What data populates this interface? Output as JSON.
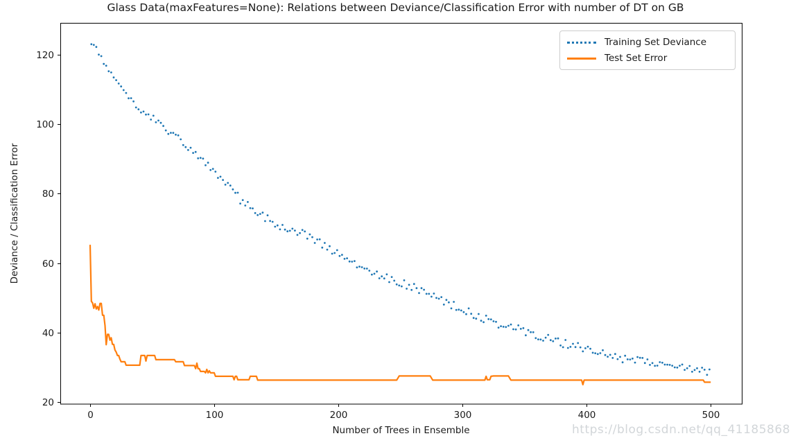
{
  "watermark": "https://blog.csdn.net/qq_41185868",
  "chart_data": {
    "type": "scatter+line",
    "title": "Glass Data(maxFeatures=None): Relations between Deviance/Classification Error with number of DT on GB",
    "xlabel": "Number of Trees in Ensemble",
    "ylabel": "Deviance / Classification Error",
    "xlim": [
      -24,
      525
    ],
    "ylim": [
      19.4,
      129.2
    ],
    "xticks": [
      0,
      100,
      200,
      300,
      400,
      500
    ],
    "yticks": [
      20,
      40,
      60,
      80,
      100,
      120
    ],
    "grid": false,
    "background": "#ffffff",
    "spine_color": "#000000",
    "legend": {
      "position": "upper right",
      "entries": [
        {
          "label": "Training Set Deviance",
          "color": "#1f77b4",
          "style": "dotted"
        },
        {
          "label": "Test Set Error",
          "color": "#ff7f0e",
          "style": "solid"
        }
      ]
    },
    "series": [
      {
        "name": "Training Set Deviance",
        "type": "scatter",
        "color": "#1f77b4",
        "marker_size": 2,
        "x_start": 1,
        "x_step": 2,
        "noise_amplitude": 1.2,
        "y": [
          124.0,
          122.8,
          121.5,
          120.3,
          119.0,
          117.8,
          116.5,
          115.3,
          114.0,
          113.2,
          112.3,
          111.5,
          110.7,
          109.9,
          109.0,
          108.2,
          107.4,
          106.6,
          105.7,
          104.9,
          104.2,
          103.7,
          103.2,
          102.6,
          102.1,
          101.6,
          101.0,
          100.5,
          99.9,
          99.4,
          98.9,
          98.3,
          97.8,
          97.3,
          96.7,
          96.1,
          95.4,
          94.8,
          94.2,
          93.5,
          92.9,
          92.3,
          91.6,
          91.0,
          90.4,
          89.7,
          89.1,
          88.5,
          87.7,
          86.9,
          86.1,
          85.4,
          84.6,
          83.8,
          83.0,
          82.2,
          81.4,
          80.6,
          79.9,
          79.1,
          78.3,
          77.5,
          77.0,
          76.6,
          76.1,
          75.6,
          75.2,
          74.7,
          74.3,
          73.8,
          73.3,
          72.9,
          72.4,
          71.9,
          71.5,
          71.0,
          70.8,
          70.5,
          70.3,
          70.0,
          69.8,
          69.5,
          69.3,
          69.0,
          68.8,
          68.5,
          68.3,
          68.0,
          67.6,
          67.1,
          66.7,
          66.2,
          65.8,
          65.4,
          64.9,
          64.5,
          64.0,
          63.6,
          63.2,
          62.7,
          62.3,
          62.0,
          61.6,
          61.3,
          61.0,
          60.6,
          60.3,
          59.9,
          59.6,
          59.3,
          58.9,
          58.6,
          58.2,
          57.9,
          57.5,
          57.2,
          56.8,
          56.5,
          56.2,
          55.9,
          55.6,
          55.4,
          55.1,
          54.8,
          54.5,
          54.2,
          53.9,
          53.6,
          53.4,
          53.1,
          52.8,
          52.5,
          52.2,
          51.9,
          51.6,
          51.3,
          51.0,
          50.7,
          50.3,
          50.0,
          49.7,
          49.3,
          49.0,
          48.7,
          48.3,
          48.0,
          47.7,
          47.3,
          47.0,
          46.7,
          46.4,
          46.1,
          45.8,
          45.5,
          45.2,
          44.9,
          44.6,
          44.3,
          44.0,
          43.7,
          43.4,
          43.2,
          43.0,
          42.8,
          42.6,
          42.4,
          42.2,
          42.0,
          41.8,
          41.6,
          41.4,
          41.2,
          41.0,
          40.8,
          40.6,
          40.4,
          40.1,
          39.9,
          39.7,
          39.4,
          39.2,
          38.9,
          38.7,
          38.5,
          38.2,
          38.0,
          37.7,
          37.5,
          37.3,
          37.2,
          37.0,
          36.9,
          36.7,
          36.5,
          36.4,
          36.2,
          36.1,
          35.9,
          35.7,
          35.6,
          35.4,
          35.2,
          35.0,
          34.8,
          34.6,
          34.4,
          34.2,
          34.0,
          33.8,
          33.6,
          33.4,
          33.2,
          33.0,
          32.8,
          32.6,
          32.4,
          32.3,
          32.2,
          32.2,
          32.1,
          32.0,
          31.9,
          31.8,
          31.7,
          31.6,
          31.5,
          31.4,
          31.3,
          31.2,
          31.1,
          30.9,
          30.8,
          30.6,
          30.5,
          30.3,
          30.2,
          30.0,
          29.9,
          29.7,
          29.6,
          29.4,
          29.3,
          29.2,
          29.1,
          29.1,
          29.0,
          28.9,
          28.8,
          28.7,
          28.6
        ]
      },
      {
        "name": "Test Set Error",
        "type": "line",
        "color": "#ff7f0e",
        "line_width": 2.2,
        "points": [
          [
            0,
            65.3
          ],
          [
            1,
            49.0
          ],
          [
            2,
            48.5
          ],
          [
            3,
            47.0
          ],
          [
            4,
            48.3
          ],
          [
            5,
            46.8
          ],
          [
            6,
            47.5
          ],
          [
            7,
            46.5
          ],
          [
            8,
            48.4
          ],
          [
            9,
            48.4
          ],
          [
            10,
            45.0
          ],
          [
            11,
            45.0
          ],
          [
            12,
            42.0
          ],
          [
            13,
            36.5
          ],
          [
            14,
            39.5
          ],
          [
            15,
            39.5
          ],
          [
            16,
            37.8
          ],
          [
            17,
            38.5
          ],
          [
            18,
            36.6
          ],
          [
            19,
            36.6
          ],
          [
            20,
            35.0
          ],
          [
            21,
            34.4
          ],
          [
            22,
            33.4
          ],
          [
            23,
            33.4
          ],
          [
            24,
            32.4
          ],
          [
            25,
            31.6
          ],
          [
            28,
            31.6
          ],
          [
            29,
            30.6
          ],
          [
            40,
            30.6
          ],
          [
            41,
            33.4
          ],
          [
            44,
            33.4
          ],
          [
            45,
            31.8
          ],
          [
            46,
            33.4
          ],
          [
            52,
            33.4
          ],
          [
            53,
            32.2
          ],
          [
            68,
            32.2
          ],
          [
            69,
            31.6
          ],
          [
            75,
            31.6
          ],
          [
            76,
            30.5
          ],
          [
            84,
            30.5
          ],
          [
            85,
            29.6
          ],
          [
            86,
            31.2
          ],
          [
            87,
            29.6
          ],
          [
            88,
            29.6
          ],
          [
            89,
            28.8
          ],
          [
            92,
            28.8
          ],
          [
            93,
            28.4
          ],
          [
            94,
            29.4
          ],
          [
            95,
            28.4
          ],
          [
            96,
            29.0
          ],
          [
            97,
            28.4
          ],
          [
            100,
            28.4
          ],
          [
            101,
            27.4
          ],
          [
            115,
            27.4
          ],
          [
            116,
            26.4
          ],
          [
            117,
            27.4
          ],
          [
            118,
            27.4
          ],
          [
            119,
            26.4
          ],
          [
            128,
            26.4
          ],
          [
            129,
            27.4
          ],
          [
            134,
            27.4
          ],
          [
            135,
            26.3
          ],
          [
            247,
            26.3
          ],
          [
            249,
            27.5
          ],
          [
            274,
            27.5
          ],
          [
            276,
            26.3
          ],
          [
            318,
            26.3
          ],
          [
            319,
            27.4
          ],
          [
            320,
            26.4
          ],
          [
            322,
            26.4
          ],
          [
            323,
            27.4
          ],
          [
            325,
            27.5
          ],
          [
            337,
            27.5
          ],
          [
            339,
            26.3
          ],
          [
            396,
            26.3
          ],
          [
            397,
            25.0
          ],
          [
            398,
            26.3
          ],
          [
            494,
            26.3
          ],
          [
            495,
            25.7
          ],
          [
            500,
            25.7
          ]
        ]
      }
    ]
  }
}
